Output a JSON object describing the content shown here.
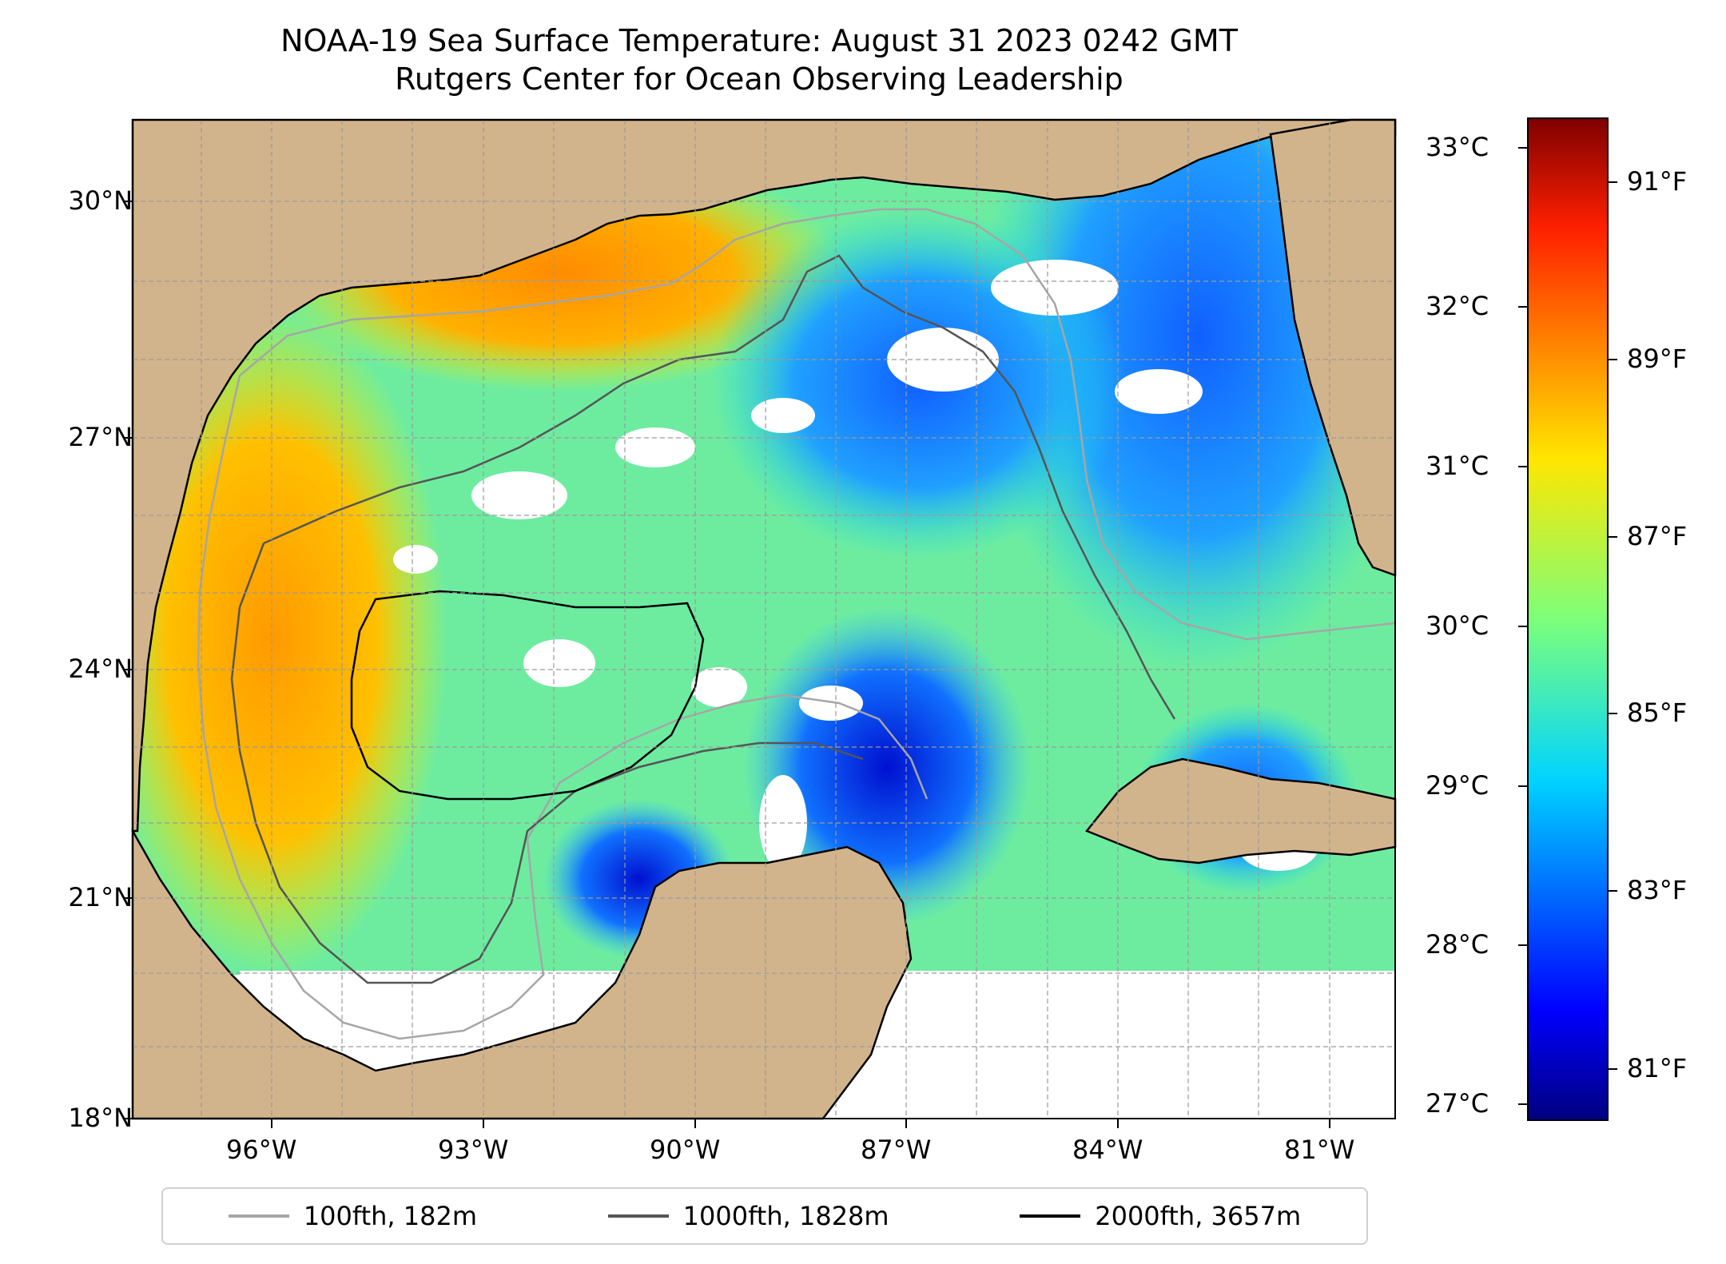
{
  "title": "NOAA-19 Sea Surface Temperature: August 31 2023 0242 GMT",
  "subtitle": "Rutgers Center for Ocean Observing Leadership",
  "map": {
    "lat_ticks": [
      "30°N",
      "27°N",
      "24°N",
      "21°N",
      "18°N"
    ],
    "lon_ticks": [
      "96°W",
      "93°W",
      "90°W",
      "87°W",
      "84°W",
      "81°W"
    ],
    "land_color": "#d2b48c",
    "no_data_color": "#ffffff"
  },
  "colorbar": {
    "celsius_ticks": [
      "33°C",
      "32°C",
      "31°C",
      "30°C",
      "29°C",
      "28°C",
      "27°C"
    ],
    "fahrenheit_ticks": [
      "91°F",
      "89°F",
      "87°F",
      "85°F",
      "83°F",
      "81°F"
    ],
    "colormap": "jet"
  },
  "legend": [
    {
      "label": "100fth, 182m",
      "color": "#a6a6a6"
    },
    {
      "label": "1000fth, 1828m",
      "color": "#555555"
    },
    {
      "label": "2000fth, 3657m",
      "color": "#000000"
    }
  ]
}
